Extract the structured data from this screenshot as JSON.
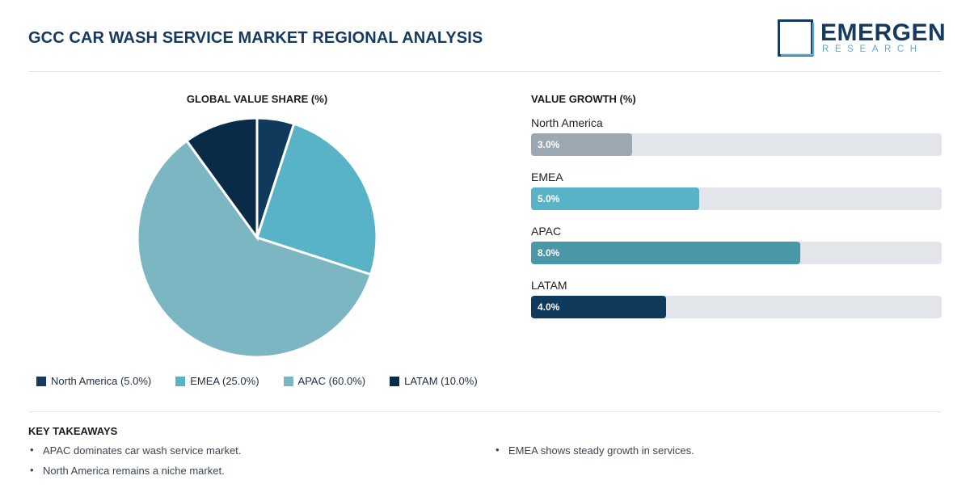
{
  "header": {
    "title": "GCC CAR WASH SERVICE MARKET REGIONAL ANALYSIS",
    "logo_name": "EMERGEN",
    "logo_sub": "RESEARCH"
  },
  "chart_data": [
    {
      "type": "pie",
      "title": "GLOBAL VALUE SHARE (%)",
      "unit": "%",
      "categories": [
        "North America",
        "EMEA",
        "APAC",
        "LATAM"
      ],
      "values": [
        5.0,
        25.0,
        60.0,
        10.0
      ],
      "legend": [
        "North America (5.0%)",
        "EMEA (25.0%)",
        "APAC (60.0%)",
        "LATAM (10.0%)"
      ],
      "colors": [
        "#0f3a5c",
        "#59b3c6",
        "#7db6c3",
        "#0a2b47"
      ],
      "legend_colors": [
        "#163a5f",
        "#59b3c6",
        "#7db6c3",
        "#0a2b47"
      ],
      "legend_position": "bottom"
    },
    {
      "type": "bar",
      "orientation": "horizontal",
      "title": "VALUE GROWTH (%)",
      "categories": [
        "North America",
        "EMEA",
        "APAC",
        "LATAM"
      ],
      "values": [
        3.0,
        5.0,
        8.0,
        4.0
      ],
      "value_labels": [
        "3.0%",
        "5.0%",
        "8.0%",
        "4.0%"
      ],
      "xlim": [
        0,
        12.2
      ],
      "colors": [
        "#9ba7b1",
        "#59b3c6",
        "#4a97a8",
        "#0f3a5c"
      ]
    }
  ],
  "takeaways": {
    "title": "KEY TAKEAWAYS",
    "items": [
      "APAC dominates car wash service market.",
      "North America remains a niche market.",
      "EMEA shows steady growth in services."
    ]
  }
}
